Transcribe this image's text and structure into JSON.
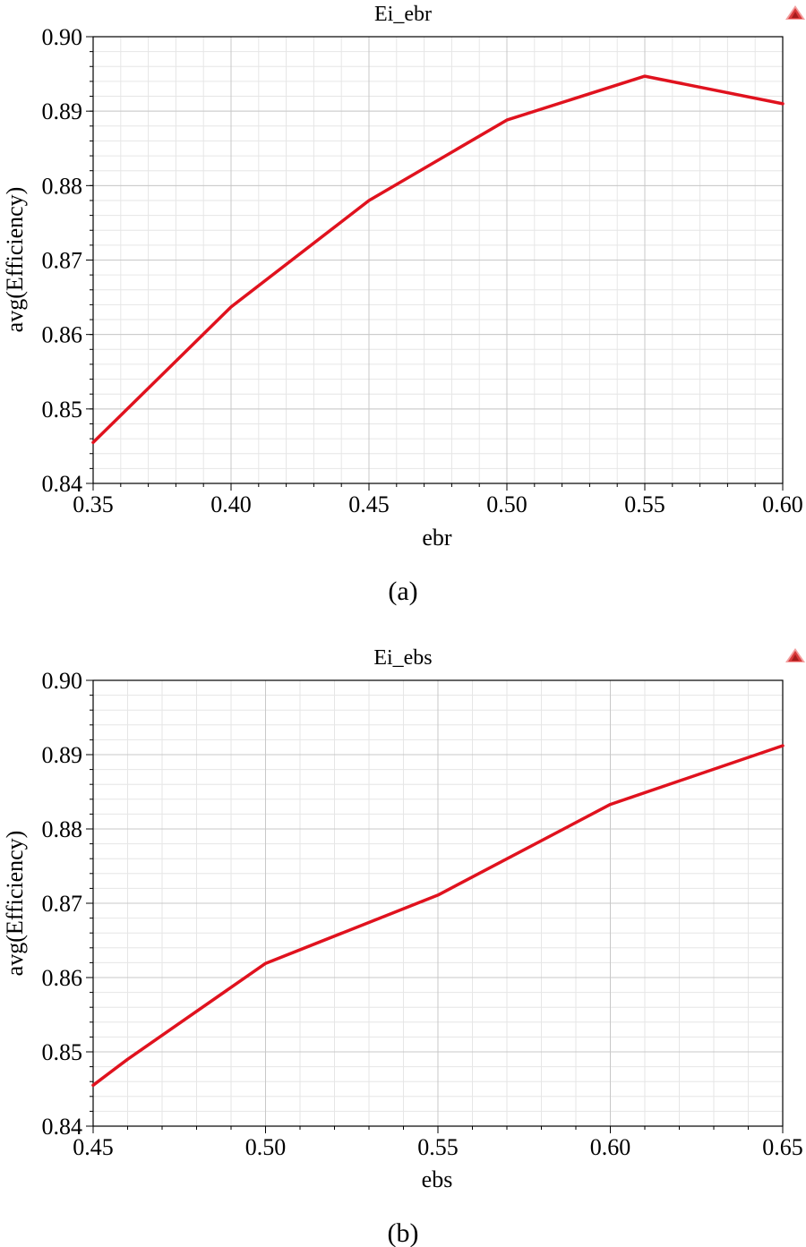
{
  "chart_data": [
    {
      "type": "line",
      "title": "Ei_ebr",
      "xlabel": "ebr",
      "ylabel": "avg(Efficiency)",
      "caption": "(a)",
      "xlim": [
        0.35,
        0.6
      ],
      "ylim": [
        0.84,
        0.9
      ],
      "xticks": [
        "0.35",
        "0.40",
        "0.45",
        "0.50",
        "0.55",
        "0.60"
      ],
      "yticks": [
        "0.84",
        "0.85",
        "0.86",
        "0.87",
        "0.88",
        "0.89",
        "0.90"
      ],
      "grid": true,
      "series": [
        {
          "color": "#e0121e",
          "x": [
            0.35,
            0.4,
            0.45,
            0.5,
            0.55,
            0.6
          ],
          "y": [
            0.8455,
            0.8637,
            0.878,
            0.8888,
            0.8947,
            0.891
          ]
        }
      ]
    },
    {
      "type": "line",
      "title": "Ei_ebs",
      "xlabel": "ebs",
      "ylabel": "avg(Efficiency)",
      "caption": "(b)",
      "xlim": [
        0.45,
        0.65
      ],
      "ylim": [
        0.84,
        0.9
      ],
      "xticks": [
        "0.45",
        "0.50",
        "0.55",
        "0.60",
        "0.65"
      ],
      "yticks": [
        "0.84",
        "0.85",
        "0.86",
        "0.87",
        "0.88",
        "0.89",
        "0.90"
      ],
      "grid": true,
      "series": [
        {
          "color": "#e0121e",
          "x": [
            0.45,
            0.46,
            0.5,
            0.55,
            0.6,
            0.65
          ],
          "y": [
            0.8455,
            0.849,
            0.8619,
            0.8711,
            0.8833,
            0.8912
          ]
        }
      ]
    }
  ]
}
